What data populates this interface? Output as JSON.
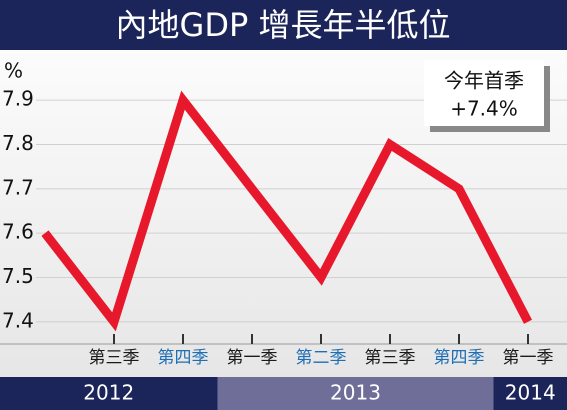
{
  "chart_data": {
    "type": "line",
    "title": "內地GDP 增長年半低位",
    "y_label": "%",
    "categories": [
      null,
      "第三季",
      "第四季",
      "第一季",
      "第二季",
      "第三季",
      "第四季",
      "第一季"
    ],
    "category_colors": [
      "#000000",
      "#1a1a1a",
      "#1f6eb4",
      "#1a1a1a",
      "#1f6eb4",
      "#1a1a1a",
      "#1f6eb4",
      "#1a1a1a"
    ],
    "year_groups": [
      {
        "label": "2012",
        "span": 3,
        "color": "#1c2559"
      },
      {
        "label": "2013",
        "span": 4,
        "color": "#6e6e98"
      },
      {
        "label": "2014",
        "span": 1,
        "color": "#1c2559"
      }
    ],
    "series": [
      {
        "name": "GDP",
        "color": "#e8182c",
        "values": [
          7.6,
          7.4,
          7.9,
          7.7,
          7.5,
          7.8,
          7.7,
          7.4
        ]
      }
    ],
    "ylim": [
      7.35,
      7.95
    ],
    "yticks": [
      7.4,
      7.5,
      7.6,
      7.7,
      7.8,
      7.9
    ],
    "grid": true,
    "annotation": [
      "今年首季",
      "+7.4%"
    ]
  }
}
